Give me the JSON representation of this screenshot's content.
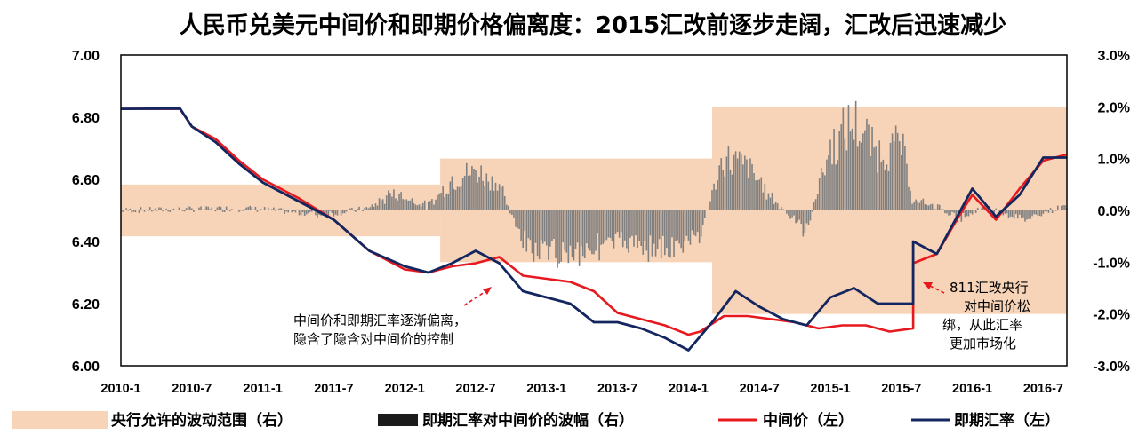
{
  "chart_data": {
    "type": "line",
    "title": "人民币兑美元中间价和即期价格偏离度：2015汇改前逐步走阔，汇改后迅速减少",
    "x_range": [
      "2010-01",
      "2016-09"
    ],
    "x_ticks": [
      "2010-1",
      "2010-7",
      "2011-1",
      "2011-7",
      "2012-1",
      "2012-7",
      "2013-1",
      "2013-7",
      "2014-1",
      "2014-7",
      "2015-1",
      "2015-7",
      "2016-1",
      "2016-7"
    ],
    "y_left": {
      "range": [
        6.0,
        7.0
      ],
      "ticks": [
        "6.00",
        "6.20",
        "6.40",
        "6.60",
        "6.80",
        "7.00"
      ]
    },
    "y_right": {
      "range": [
        -3.0,
        3.0
      ],
      "ticks": [
        "-3.0%",
        "-2.0%",
        "-1.0%",
        "0.0%",
        "1.0%",
        "2.0%",
        "3.0%"
      ]
    },
    "band": {
      "name": "央行允许的波动范围（右）",
      "color": "#F7D3B8",
      "segments": [
        {
          "start": "2010-01",
          "end": "2012-04",
          "limit": 0.5
        },
        {
          "start": "2012-04",
          "end": "2014-03",
          "limit": 1.0
        },
        {
          "start": "2014-03",
          "end": "2016-09",
          "limit": 2.0
        }
      ]
    },
    "series": [
      {
        "name": "中间价（左）",
        "axis": "left",
        "color": "#E8191E",
        "points": [
          [
            "2010-01",
            6.827
          ],
          [
            "2010-06",
            6.827
          ],
          [
            "2010-07",
            6.77
          ],
          [
            "2010-09",
            6.73
          ],
          [
            "2010-11",
            6.66
          ],
          [
            "2011-01",
            6.6
          ],
          [
            "2011-04",
            6.54
          ],
          [
            "2011-07",
            6.47
          ],
          [
            "2011-10",
            6.37
          ],
          [
            "2012-01",
            6.31
          ],
          [
            "2012-03",
            6.3
          ],
          [
            "2012-05",
            6.32
          ],
          [
            "2012-07",
            6.33
          ],
          [
            "2012-09",
            6.35
          ],
          [
            "2012-11",
            6.29
          ],
          [
            "2013-01",
            6.28
          ],
          [
            "2013-03",
            6.27
          ],
          [
            "2013-05",
            6.24
          ],
          [
            "2013-07",
            6.17
          ],
          [
            "2013-09",
            6.15
          ],
          [
            "2013-11",
            6.13
          ],
          [
            "2014-01",
            6.1
          ],
          [
            "2014-02",
            6.11
          ],
          [
            "2014-04",
            6.16
          ],
          [
            "2014-06",
            6.16
          ],
          [
            "2014-08",
            6.15
          ],
          [
            "2014-10",
            6.14
          ],
          [
            "2014-12",
            6.12
          ],
          [
            "2015-02",
            6.13
          ],
          [
            "2015-04",
            6.13
          ],
          [
            "2015-06",
            6.11
          ],
          [
            "2015-08",
            6.12
          ],
          [
            "2015-08",
            6.33
          ],
          [
            "2015-10",
            6.36
          ],
          [
            "2015-12",
            6.49
          ],
          [
            "2016-01",
            6.55
          ],
          [
            "2016-03",
            6.47
          ],
          [
            "2016-05",
            6.57
          ],
          [
            "2016-07",
            6.66
          ],
          [
            "2016-09",
            6.68
          ]
        ]
      },
      {
        "name": "即期汇率（左）",
        "axis": "left",
        "color": "#14265F",
        "points": [
          [
            "2010-01",
            6.827
          ],
          [
            "2010-06",
            6.828
          ],
          [
            "2010-07",
            6.77
          ],
          [
            "2010-09",
            6.72
          ],
          [
            "2010-11",
            6.65
          ],
          [
            "2011-01",
            6.59
          ],
          [
            "2011-04",
            6.53
          ],
          [
            "2011-07",
            6.47
          ],
          [
            "2011-10",
            6.37
          ],
          [
            "2012-01",
            6.32
          ],
          [
            "2012-03",
            6.3
          ],
          [
            "2012-05",
            6.33
          ],
          [
            "2012-07",
            6.37
          ],
          [
            "2012-09",
            6.33
          ],
          [
            "2012-11",
            6.24
          ],
          [
            "2013-01",
            6.22
          ],
          [
            "2013-03",
            6.2
          ],
          [
            "2013-05",
            6.14
          ],
          [
            "2013-07",
            6.14
          ],
          [
            "2013-09",
            6.12
          ],
          [
            "2013-11",
            6.09
          ],
          [
            "2014-01",
            6.05
          ],
          [
            "2014-03",
            6.14
          ],
          [
            "2014-05",
            6.24
          ],
          [
            "2014-07",
            6.19
          ],
          [
            "2014-09",
            6.15
          ],
          [
            "2014-11",
            6.13
          ],
          [
            "2015-01",
            6.22
          ],
          [
            "2015-03",
            6.25
          ],
          [
            "2015-05",
            6.2
          ],
          [
            "2015-08",
            6.2
          ],
          [
            "2015-08",
            6.4
          ],
          [
            "2015-10",
            6.36
          ],
          [
            "2015-12",
            6.5
          ],
          [
            "2016-01",
            6.57
          ],
          [
            "2016-03",
            6.48
          ],
          [
            "2016-05",
            6.55
          ],
          [
            "2016-07",
            6.67
          ],
          [
            "2016-09",
            6.67
          ]
        ]
      },
      {
        "name": "即期汇率对中间价的波幅（右）",
        "axis": "right",
        "color": "#808080",
        "type": "bar",
        "points": [
          [
            "2010-01",
            0.0
          ],
          [
            "2010-12",
            0.05
          ],
          [
            "2011-06",
            -0.1
          ],
          [
            "2011-10",
            0.05
          ],
          [
            "2011-12",
            0.4
          ],
          [
            "2012-01",
            0.3
          ],
          [
            "2012-03",
            0.1
          ],
          [
            "2012-05",
            0.7
          ],
          [
            "2012-07",
            0.9
          ],
          [
            "2012-09",
            0.6
          ],
          [
            "2012-11",
            -0.8
          ],
          [
            "2013-01",
            -1.0
          ],
          [
            "2013-04",
            -0.9
          ],
          [
            "2013-07",
            -0.7
          ],
          [
            "2013-09",
            -0.8
          ],
          [
            "2013-12",
            -0.9
          ],
          [
            "2014-02",
            -0.5
          ],
          [
            "2014-04",
            1.2
          ],
          [
            "2014-06",
            1.0
          ],
          [
            "2014-08",
            0.3
          ],
          [
            "2014-11",
            -0.5
          ],
          [
            "2014-12",
            0.6
          ],
          [
            "2015-01",
            1.4
          ],
          [
            "2015-03",
            2.0
          ],
          [
            "2015-05",
            1.3
          ],
          [
            "2015-07",
            1.5
          ],
          [
            "2015-08",
            0.2
          ],
          [
            "2015-10",
            0.1
          ],
          [
            "2015-12",
            -0.2
          ],
          [
            "2016-02",
            0.1
          ],
          [
            "2016-05",
            -0.2
          ],
          [
            "2016-09",
            0.1
          ]
        ]
      }
    ],
    "annotations": [
      {
        "lines": [
          "中间价和即期汇率逐渐偏离，",
          "隐含了隐含对中间价的控制"
        ],
        "target": "2012-09"
      },
      {
        "lines": [
          "811汇改央行",
          "对中间价松",
          "绑，从此汇率",
          "更加市场化"
        ],
        "target": "2015-08"
      }
    ],
    "legend": {
      "placement": "bottom",
      "items": [
        {
          "label": "央行允许的波动范围（右）",
          "swatch": "band"
        },
        {
          "label": "即期汇率对中间价的波幅（右）",
          "swatch": "bar"
        },
        {
          "label": "中间价（左）",
          "swatch": "line-red"
        },
        {
          "label": "即期汇率（左）",
          "swatch": "line-navy"
        }
      ]
    }
  }
}
